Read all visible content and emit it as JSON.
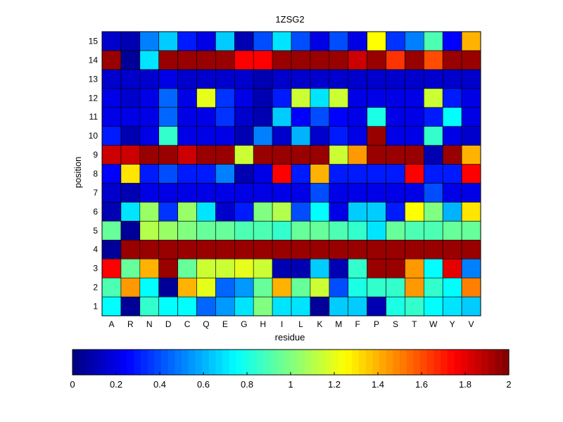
{
  "chart_data": {
    "type": "heatmap",
    "title": "1ZSG2",
    "xlabel": "residue",
    "ylabel": "position",
    "x_categories": [
      "A",
      "R",
      "N",
      "D",
      "C",
      "Q",
      "E",
      "G",
      "H",
      "I",
      "L",
      "K",
      "M",
      "F",
      "P",
      "S",
      "T",
      "W",
      "Y",
      "V"
    ],
    "y_categories": [
      "1",
      "2",
      "3",
      "4",
      "5",
      "6",
      "7",
      "8",
      "9",
      "10",
      "11",
      "12",
      "13",
      "14",
      "15"
    ],
    "colorbar": {
      "min": 0,
      "max": 2,
      "ticks": [
        "0",
        "0.2",
        "0.4",
        "0.6",
        "0.8",
        "1",
        "1.2",
        "1.4",
        "1.6",
        "1.8",
        "2"
      ],
      "colormap": "jet"
    },
    "values": [
      [
        0.75,
        0.05,
        0.85,
        0.75,
        0.75,
        0.45,
        0.55,
        0.7,
        1.0,
        0.7,
        0.7,
        0.05,
        0.65,
        0.65,
        0.1,
        0.8,
        0.85,
        0.75,
        0.7,
        0.65
      ],
      [
        0.9,
        1.45,
        0.75,
        0.05,
        1.4,
        1.2,
        0.45,
        0.55,
        0.95,
        1.4,
        0.95,
        1.15,
        0.4,
        0.8,
        0.85,
        0.85,
        1.45,
        0.85,
        0.75,
        1.5
      ],
      [
        1.75,
        0.95,
        1.4,
        1.95,
        0.95,
        1.15,
        1.15,
        1.2,
        1.15,
        0.1,
        0.1,
        0.65,
        0.1,
        0.85,
        1.95,
        1.95,
        1.45,
        0.75,
        1.8,
        0.5
      ],
      [
        0.05,
        1.95,
        1.95,
        1.95,
        1.95,
        1.95,
        1.95,
        1.95,
        1.95,
        1.95,
        1.95,
        1.95,
        1.95,
        1.95,
        1.95,
        1.95,
        1.95,
        1.95,
        1.95,
        1.95
      ],
      [
        0.95,
        0.05,
        1.1,
        1.05,
        1.0,
        0.95,
        0.95,
        0.9,
        0.9,
        0.85,
        0.95,
        0.95,
        0.9,
        0.85,
        0.7,
        0.95,
        0.9,
        0.9,
        0.95,
        0.95
      ],
      [
        0.1,
        0.7,
        1.05,
        0.35,
        1.05,
        0.7,
        0.15,
        0.3,
        1.0,
        1.1,
        0.4,
        0.75,
        0.2,
        0.65,
        0.65,
        0.3,
        1.25,
        1.0,
        0.6,
        1.3
      ],
      [
        0.15,
        0.1,
        0.2,
        0.2,
        0.2,
        0.2,
        0.2,
        0.2,
        0.2,
        0.2,
        0.2,
        0.4,
        0.2,
        0.2,
        0.2,
        0.2,
        0.2,
        0.4,
        0.2,
        0.2
      ],
      [
        0.25,
        1.3,
        0.3,
        0.4,
        0.3,
        0.3,
        0.5,
        0.1,
        0.2,
        1.75,
        0.3,
        1.4,
        0.3,
        0.3,
        0.3,
        0.3,
        1.75,
        0.3,
        0.3,
        1.75
      ],
      [
        1.85,
        1.85,
        1.95,
        1.95,
        1.85,
        1.95,
        1.95,
        1.15,
        1.95,
        1.95,
        1.95,
        1.95,
        1.15,
        1.45,
        1.95,
        1.95,
        1.95,
        0.1,
        1.95,
        1.4
      ],
      [
        0.3,
        0.1,
        0.2,
        0.85,
        0.2,
        0.2,
        0.2,
        0.1,
        0.5,
        0.15,
        0.6,
        0.15,
        0.3,
        0.2,
        1.95,
        0.2,
        0.2,
        0.85,
        0.2,
        0.15
      ],
      [
        0.2,
        0.2,
        0.2,
        0.45,
        0.2,
        0.2,
        0.35,
        0.15,
        0.1,
        0.65,
        0.25,
        0.4,
        0.25,
        0.2,
        0.8,
        0.2,
        0.2,
        0.3,
        0.75,
        0.2
      ],
      [
        0.2,
        0.15,
        0.2,
        0.45,
        0.2,
        1.2,
        0.35,
        0.2,
        0.1,
        0.3,
        1.15,
        0.7,
        1.15,
        0.2,
        0.2,
        0.2,
        0.2,
        1.15,
        0.3,
        0.2
      ],
      [
        0.15,
        0.15,
        0.15,
        0.2,
        0.15,
        0.15,
        0.15,
        0.15,
        0.1,
        0.15,
        0.15,
        0.15,
        0.15,
        0.15,
        0.15,
        0.15,
        0.15,
        0.15,
        0.15,
        0.15
      ],
      [
        1.95,
        0.05,
        0.7,
        1.95,
        1.95,
        1.95,
        1.95,
        1.75,
        1.75,
        1.95,
        1.95,
        1.95,
        1.95,
        1.85,
        1.95,
        1.65,
        1.95,
        1.6,
        1.95,
        1.95
      ],
      [
        0.15,
        0.1,
        0.5,
        0.65,
        0.3,
        0.2,
        0.65,
        0.1,
        0.4,
        0.7,
        0.4,
        0.2,
        0.4,
        0.2,
        1.25,
        0.35,
        0.5,
        0.9,
        0.25,
        1.4
      ]
    ]
  }
}
